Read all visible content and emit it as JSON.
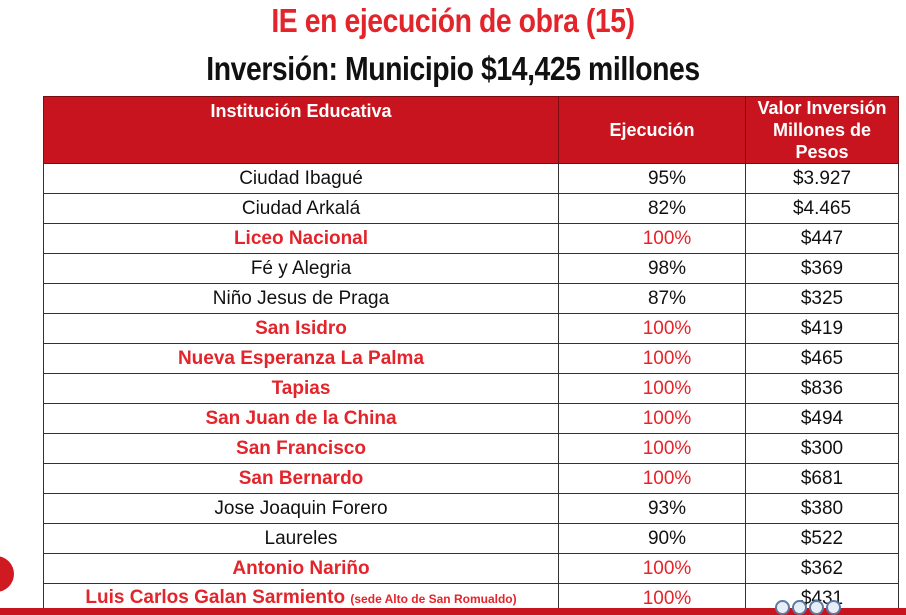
{
  "header": {
    "title": "IE en ejecución de obra (15)",
    "subtitle": "Inversión: Municipio $14,425 millones"
  },
  "table": {
    "columns": [
      "Institución Educativa",
      "Ejecución",
      "Valor Inversión",
      "Millones de Pesos"
    ],
    "rows": [
      {
        "name": "Ciudad Ibagué",
        "note": "",
        "pct": "95%",
        "value": "$3.927",
        "highlight": false
      },
      {
        "name": "Ciudad Arkalá",
        "note": "",
        "pct": "82%",
        "value": "$4.465",
        "highlight": false
      },
      {
        "name": "Liceo Nacional",
        "note": "",
        "pct": "100%",
        "value": "$447",
        "highlight": true
      },
      {
        "name": "Fé y Alegria",
        "note": "",
        "pct": "98%",
        "value": "$369",
        "highlight": false
      },
      {
        "name": "Niño Jesus de Praga",
        "note": "",
        "pct": "87%",
        "value": "$325",
        "highlight": false
      },
      {
        "name": "San Isidro",
        "note": "",
        "pct": "100%",
        "value": "$419",
        "highlight": true
      },
      {
        "name": "Nueva Esperanza La Palma",
        "note": "",
        "pct": "100%",
        "value": "$465",
        "highlight": true
      },
      {
        "name": "Tapias",
        "note": "",
        "pct": "100%",
        "value": "$836",
        "highlight": true
      },
      {
        "name": "San Juan de la China",
        "note": "",
        "pct": "100%",
        "value": "$494",
        "highlight": true
      },
      {
        "name": "San Francisco",
        "note": "",
        "pct": "100%",
        "value": "$300",
        "highlight": true
      },
      {
        "name": "San Bernardo",
        "note": "",
        "pct": "100%",
        "value": "$681",
        "highlight": true
      },
      {
        "name": "Jose Joaquin Forero",
        "note": "",
        "pct": "93%",
        "value": "$380",
        "highlight": false
      },
      {
        "name": "Laureles",
        "note": "",
        "pct": "90%",
        "value": "$522",
        "highlight": false
      },
      {
        "name": "Antonio Nariño",
        "note": "",
        "pct": "100%",
        "value": "$362",
        "highlight": true
      },
      {
        "name": "Luis Carlos Galan Sarmiento",
        "note": "(sede Alto de San Romualdo)",
        "pct": "100%",
        "value": "$431",
        "highlight": true
      }
    ]
  },
  "colors": {
    "accent_red": "#e3242b",
    "header_red": "#c8141e"
  }
}
